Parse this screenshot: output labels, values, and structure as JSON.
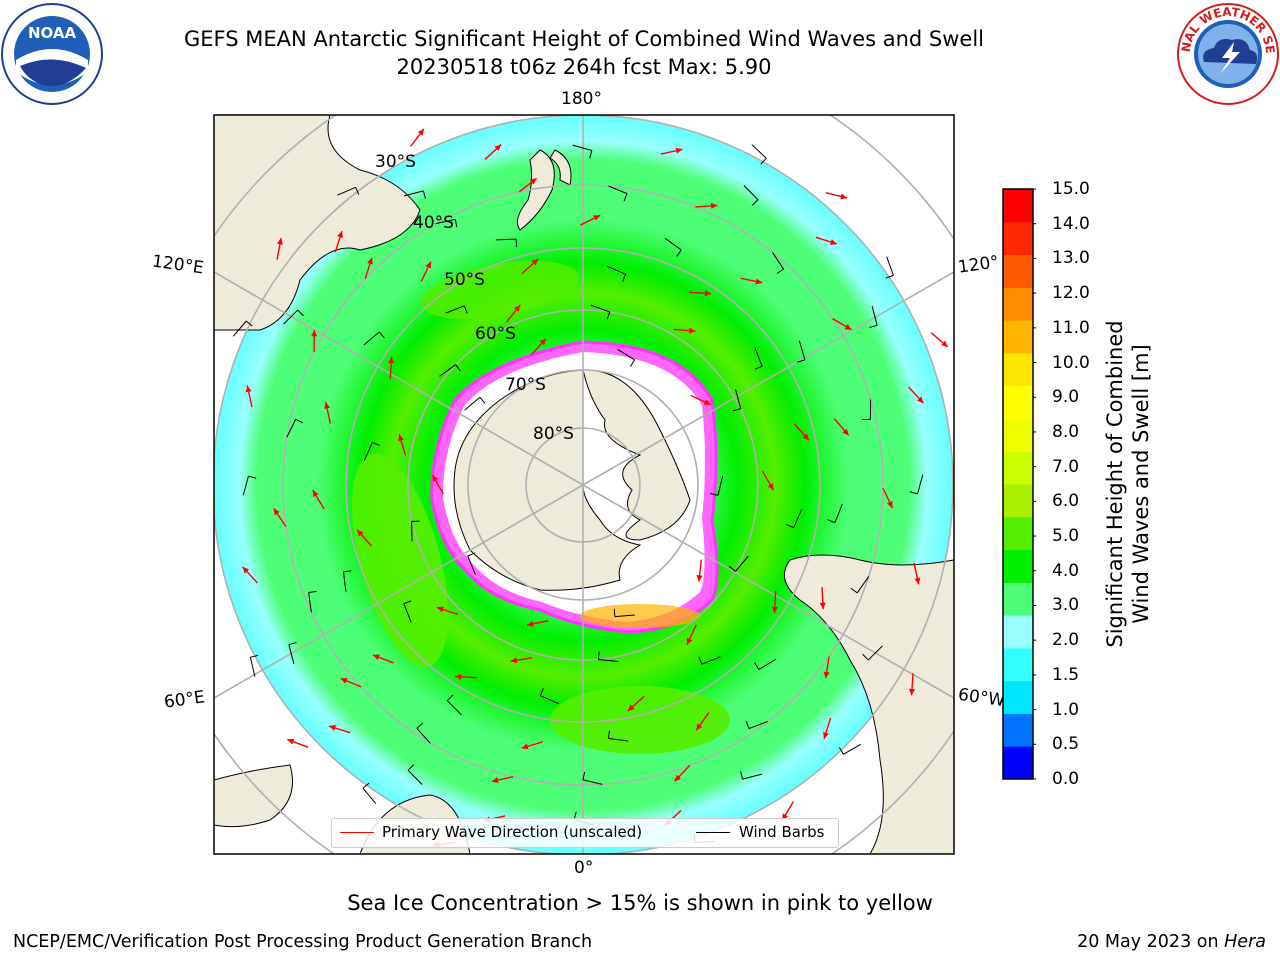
{
  "header": {
    "title_line1": "GEFS MEAN Antarctic Significant Height of Combined Wind Waves and Swell",
    "title_line2": "20230518 t06z 264h fcst   Max: 5.90",
    "left_logo_text": "NOAA",
    "right_logo_text": "NATIONAL WEATHER SERVICE"
  },
  "map": {
    "projection": "south-polar-stereographic",
    "longitude_labels": [
      "180°",
      "120°E",
      "120°",
      "60°E",
      "60°W",
      "0°"
    ],
    "latitude_labels": [
      "30°S",
      "40°S",
      "50°S",
      "60°S",
      "70°S",
      "80°S"
    ],
    "legend": {
      "wave_direction_label": "Primary Wave Direction (unscaled)",
      "wave_direction_color": "#ff0000",
      "wind_barbs_label": "Wind Barbs",
      "wind_barbs_color": "#000000"
    },
    "colors": {
      "land": "#efebdb",
      "ice_region": "#ffffff",
      "ice_edge": "#ff33ff",
      "grid": "#b0b0b0"
    }
  },
  "colorbar": {
    "title_line1": "Significant Height of Combined",
    "title_line2": "Wind Waves and Swell [m]",
    "ticks": [
      "15.0",
      "14.0",
      "13.0",
      "12.0",
      "11.0",
      "10.0",
      "9.0",
      "8.0",
      "7.0",
      "6.0",
      "5.0",
      "4.0",
      "3.0",
      "2.0",
      "1.5",
      "1.0",
      "0.5",
      "0.0"
    ],
    "colors": [
      "#0000ff",
      "#0073ff",
      "#00e5ff",
      "#33ffff",
      "#99ffff",
      "#4dff77",
      "#00ee00",
      "#55ee00",
      "#aaee00",
      "#ccff00",
      "#eeff00",
      "#ffff00",
      "#ffe600",
      "#ffb400",
      "#ff8c00",
      "#ff5a00",
      "#ff2800",
      "#ff0000"
    ]
  },
  "footer": {
    "sea_ice_note": "Sea Ice Concentration > 15% is shown in pink to yellow",
    "left_text": "NCEP/EMC/Verification Post Processing Product Generation Branch",
    "date_text": "20 May 2023 on ",
    "machine_text": "Hera"
  }
}
